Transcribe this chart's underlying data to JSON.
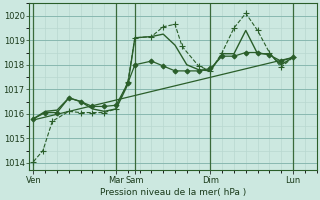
{
  "xlabel": "Pression niveau de la mer( hPa )",
  "bg_color": "#cce8e0",
  "line_color": "#2a5e2a",
  "ylim": [
    1013.7,
    1020.5
  ],
  "yticks": [
    1014,
    1015,
    1016,
    1017,
    1018,
    1019,
    1020
  ],
  "x_day_labels": [
    {
      "label": "Ven",
      "x": 0.0
    },
    {
      "label": "Mar",
      "x": 3.5
    },
    {
      "label": "Sam",
      "x": 4.3
    },
    {
      "label": "Dim",
      "x": 7.5
    },
    {
      "label": "Lun",
      "x": 11.0
    }
  ],
  "x_major_ticks": [
    0.0,
    3.5,
    4.3,
    7.5,
    11.0
  ],
  "xlim": [
    -0.2,
    12.0
  ],
  "lines": [
    {
      "x": [
        0.0,
        0.4,
        0.8,
        1.5,
        2.0,
        2.5,
        3.0,
        3.5,
        4.0,
        4.3,
        5.0,
        5.5,
        6.0,
        6.3,
        7.0,
        7.5,
        8.0,
        8.5,
        9.0,
        9.5,
        10.0,
        10.5,
        11.0
      ],
      "y": [
        1014.05,
        1014.5,
        1015.7,
        1016.1,
        1016.05,
        1016.05,
        1016.05,
        1016.2,
        1017.3,
        1019.1,
        1019.15,
        1019.55,
        1019.65,
        1018.75,
        1017.95,
        1017.75,
        1018.5,
        1019.5,
        1020.1,
        1019.4,
        1018.5,
        1017.9,
        1018.3
      ],
      "marker": "+",
      "markersize": 4,
      "linestyle": "--",
      "lw": 0.8
    },
    {
      "x": [
        0.0,
        0.5,
        1.0,
        1.5,
        2.0,
        2.5,
        3.0,
        3.5,
        4.0,
        4.3,
        5.0,
        5.5,
        6.0,
        6.5,
        7.0,
        7.5,
        8.0,
        8.5,
        9.0,
        9.5,
        10.0,
        10.5,
        11.0
      ],
      "y": [
        1015.8,
        1016.05,
        1016.05,
        1016.65,
        1016.5,
        1016.3,
        1016.3,
        1016.35,
        1017.25,
        1018.0,
        1018.15,
        1017.95,
        1017.75,
        1017.75,
        1017.75,
        1017.85,
        1018.35,
        1018.35,
        1018.5,
        1018.5,
        1018.4,
        1018.15,
        1018.3
      ],
      "marker": "D",
      "markersize": 2.5,
      "linestyle": "-",
      "lw": 0.9
    },
    {
      "x": [
        0.0,
        0.5,
        1.0,
        1.5,
        2.0,
        2.5,
        3.0,
        3.5,
        4.0,
        4.3,
        5.0,
        5.5,
        6.0,
        6.5,
        7.0,
        7.5,
        8.0,
        8.5,
        9.0,
        9.5,
        10.0,
        10.5,
        11.0
      ],
      "y": [
        1015.8,
        1016.1,
        1016.15,
        1016.65,
        1016.5,
        1016.2,
        1016.1,
        1016.2,
        1017.2,
        1019.1,
        1019.15,
        1019.25,
        1018.8,
        1018.0,
        1017.8,
        1017.75,
        1018.45,
        1018.45,
        1019.4,
        1018.45,
        1018.45,
        1018.0,
        1018.3
      ],
      "marker": null,
      "linestyle": "-",
      "lw": 1.0
    },
    {
      "x": [
        0.0,
        11.0
      ],
      "y": [
        1015.75,
        1018.3
      ],
      "marker": null,
      "linestyle": "-",
      "lw": 0.9
    }
  ]
}
